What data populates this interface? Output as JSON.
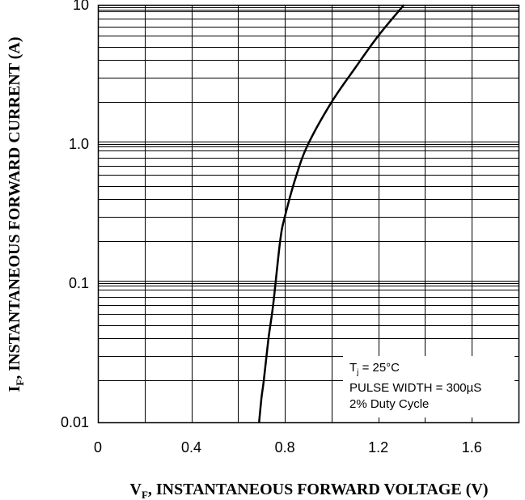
{
  "chart_data": {
    "type": "line",
    "x_axis": {
      "label_main": "V",
      "label_sub": "F",
      "label_rest": ", INSTANTANEOUS FORWARD VOLTAGE (V)",
      "range": [
        0,
        1.8
      ],
      "ticks": [
        {
          "value": 0,
          "label": "0"
        },
        {
          "value": 0.4,
          "label": "0.4"
        },
        {
          "value": 0.8,
          "label": "0.8"
        },
        {
          "value": 1.2,
          "label": "1.2"
        },
        {
          "value": 1.6,
          "label": "1.6"
        }
      ],
      "gridlines": [
        0,
        0.2,
        0.4,
        0.6,
        0.8,
        1.0,
        1.2,
        1.4,
        1.6,
        1.8
      ]
    },
    "y_axis": {
      "label_main": "I",
      "label_sub": "F",
      "label_rest": ", INSTANTANEOUS FORWARD CURRENT (A)",
      "scale": "log",
      "range": [
        0.01,
        10
      ],
      "ticks": [
        {
          "value": 10,
          "label": "10"
        },
        {
          "value": 1,
          "label": "1.0"
        },
        {
          "value": 0.1,
          "label": "0.1"
        },
        {
          "value": 0.01,
          "label": "0.01"
        }
      ]
    },
    "grid": true,
    "series": [
      {
        "points": [
          {
            "x": 0.69,
            "y": 0.01
          },
          {
            "x": 0.7,
            "y": 0.015
          },
          {
            "x": 0.71,
            "y": 0.02
          },
          {
            "x": 0.73,
            "y": 0.04
          },
          {
            "x": 0.75,
            "y": 0.07
          },
          {
            "x": 0.78,
            "y": 0.2
          },
          {
            "x": 0.8,
            "y": 0.3
          },
          {
            "x": 0.85,
            "y": 0.6
          },
          {
            "x": 0.9,
            "y": 1.0
          },
          {
            "x": 1.0,
            "y": 2.0
          },
          {
            "x": 1.1,
            "y": 3.5
          },
          {
            "x": 1.2,
            "y": 6.0
          },
          {
            "x": 1.31,
            "y": 10.0
          }
        ]
      }
    ],
    "annotation": {
      "line1_main": "T",
      "line1_sub": "j",
      "line1_rest": " = 25°C",
      "line2": "PULSE WIDTH = 300µS",
      "line3": "2% Duty Cycle"
    }
  }
}
